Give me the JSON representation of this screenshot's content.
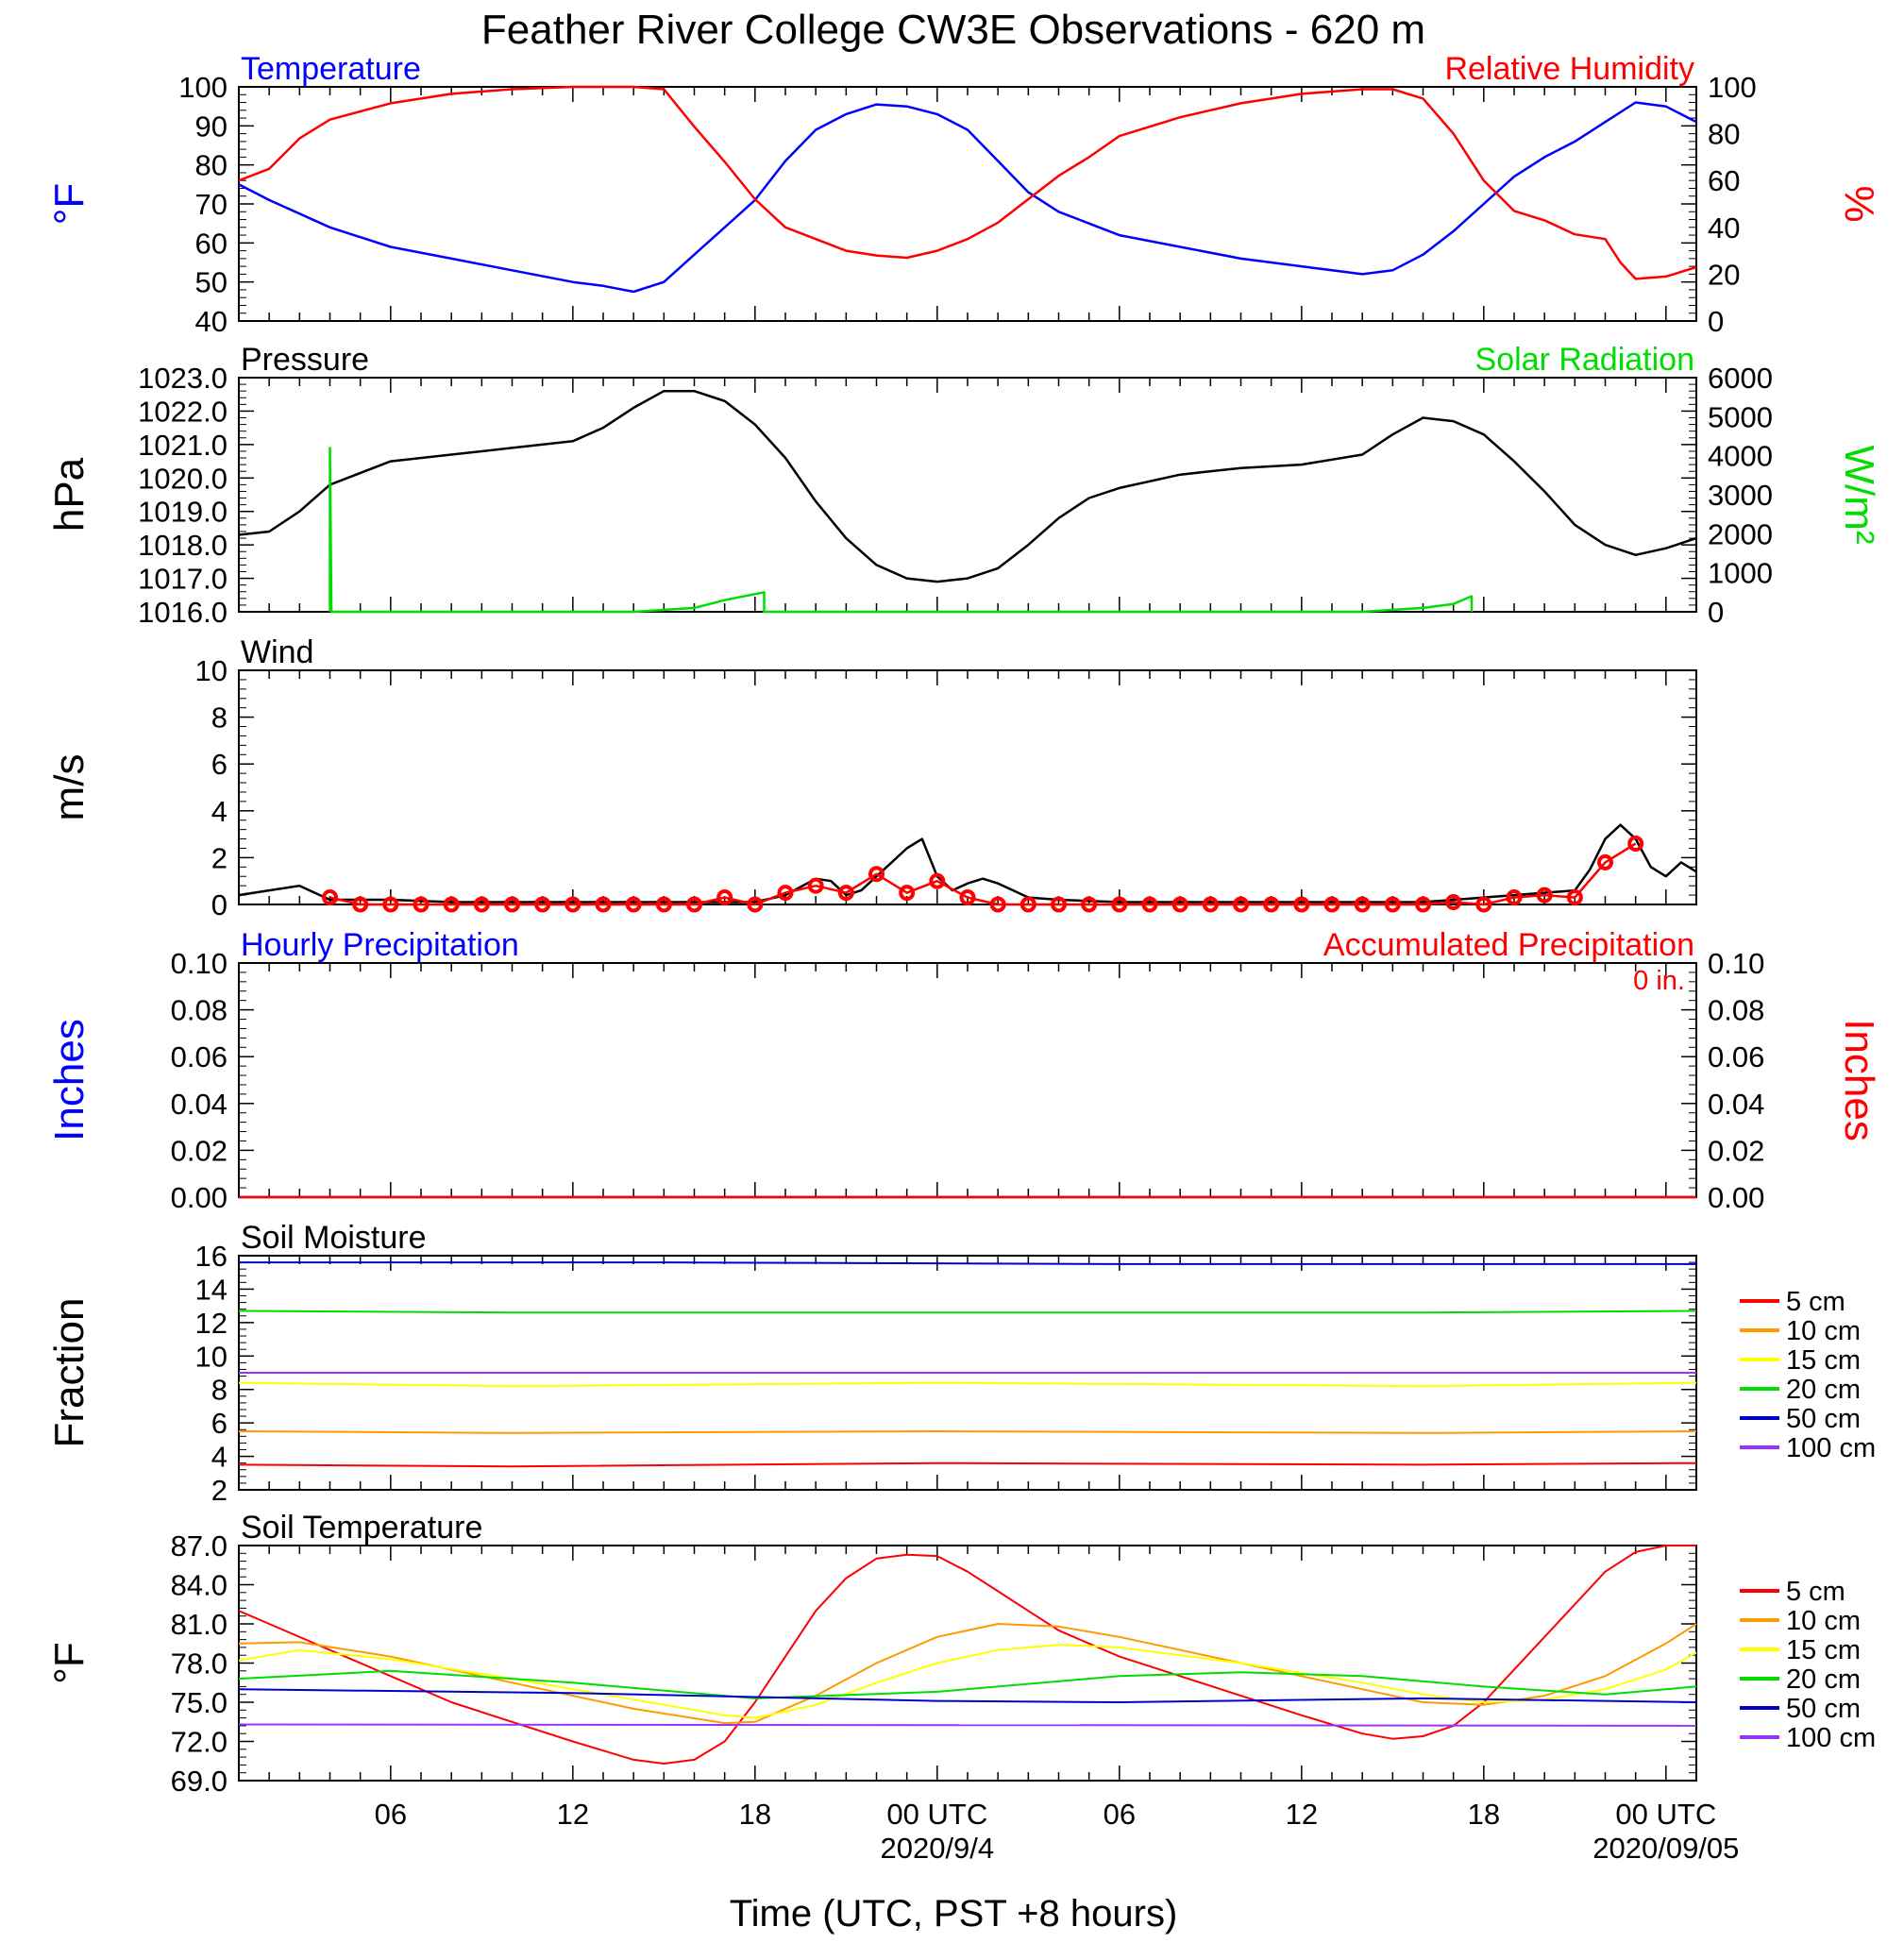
{
  "title": "Feather River College CW3E Observations - 620 m",
  "xlabel": "Time (UTC, PST +8 hours)",
  "x_ticks": [
    {
      "hour": 6,
      "label": "06"
    },
    {
      "hour": 12,
      "label": "12"
    },
    {
      "hour": 18,
      "label": "18"
    },
    {
      "hour": 24,
      "label": "00 UTC",
      "sub": "2020/9/4"
    },
    {
      "hour": 30,
      "label": "06"
    },
    {
      "hour": 36,
      "label": "12"
    },
    {
      "hour": 42,
      "label": "18"
    },
    {
      "hour": 48,
      "label": "00 UTC",
      "sub": "2020/09/05"
    }
  ],
  "colors": {
    "blue": "#0000ff",
    "red": "#ff0000",
    "green": "#00dd00",
    "black": "#000000",
    "orange": "#ff9900",
    "yellow": "#ffff00",
    "darkblue": "#0000cc",
    "purple": "#9933ff"
  },
  "chart_data": [
    {
      "id": "temp_rh",
      "type": "line",
      "left_title": "Temperature",
      "right_title": "Relative Humidity",
      "ylabel_left": "°F",
      "ylabel_right": "%",
      "ylim_left": [
        40,
        100
      ],
      "ylim_right": [
        0,
        100
      ],
      "yticks_left": [
        "40",
        "50",
        "60",
        "70",
        "80",
        "90",
        "100"
      ],
      "yticks_right": [
        "0",
        "20",
        "40",
        "60",
        "80",
        "100"
      ],
      "series": [
        {
          "name": "Temperature",
          "axis": "left",
          "color": "#0000ff",
          "x": [
            1,
            2,
            4,
            6,
            8,
            10,
            12,
            13,
            14,
            15,
            16,
            17,
            18,
            19,
            20,
            21,
            22,
            23,
            24,
            25,
            26,
            27,
            28,
            29,
            30,
            32,
            34,
            36,
            38,
            39,
            40,
            41,
            42,
            43,
            44,
            45,
            46,
            47,
            48,
            49
          ],
          "y": [
            75,
            71,
            64,
            59,
            56,
            53,
            50,
            49,
            47.5,
            50,
            57,
            64,
            71,
            81,
            89,
            93,
            95.5,
            95,
            93,
            89,
            81,
            73,
            68,
            65,
            62,
            59,
            56,
            54,
            52,
            53,
            57,
            63,
            70,
            77,
            82,
            86,
            91,
            96,
            95,
            91
          ]
        },
        {
          "name": "Relative Humidity",
          "axis": "right",
          "color": "#ff0000",
          "x": [
            1,
            2,
            3,
            4,
            6,
            8,
            10,
            12,
            13,
            14,
            15,
            16,
            17,
            18,
            19,
            20,
            21,
            22,
            23,
            24,
            25,
            26,
            27,
            28,
            29,
            30,
            32,
            34,
            36,
            38,
            39,
            40,
            41,
            42,
            43,
            44,
            45,
            46,
            46.5,
            47,
            48,
            49
          ],
          "y": [
            60,
            65,
            78,
            86,
            93,
            97,
            99,
            100,
            100,
            100,
            99,
            83,
            68,
            52,
            40,
            35,
            30,
            28,
            27,
            30,
            35,
            42,
            52,
            62,
            70,
            79,
            87,
            93,
            97,
            99,
            99,
            95,
            80,
            60,
            47,
            43,
            37,
            35,
            25,
            18,
            19,
            23
          ]
        }
      ]
    },
    {
      "id": "pres_solar",
      "type": "line",
      "left_title": "Pressure",
      "right_title": "Solar Radiation",
      "ylabel_left": "hPa",
      "ylabel_right": "W/m²",
      "ylim_left": [
        1016.0,
        1023.0
      ],
      "ylim_right": [
        0,
        6000
      ],
      "yticks_left": [
        "1016.0",
        "1017.0",
        "1018.0",
        "1019.0",
        "1020.0",
        "1021.0",
        "1022.0",
        "1023.0"
      ],
      "yticks_right": [
        "0",
        "1000",
        "2000",
        "3000",
        "4000",
        "5000",
        "6000"
      ],
      "series": [
        {
          "name": "Pressure",
          "axis": "left",
          "color": "#000000",
          "x": [
            1,
            2,
            3,
            4,
            6,
            8,
            10,
            12,
            13,
            14,
            15,
            16,
            17,
            18,
            19,
            20,
            21,
            22,
            23,
            24,
            25,
            26,
            27,
            28,
            29,
            30,
            32,
            34,
            36,
            38,
            39,
            40,
            41,
            42,
            43,
            44,
            45,
            46,
            47,
            48,
            49
          ],
          "y": [
            1018.3,
            1018.4,
            1019.0,
            1019.8,
            1020.5,
            1020.7,
            1020.9,
            1021.1,
            1021.5,
            1022.1,
            1022.6,
            1022.6,
            1022.3,
            1021.6,
            1020.6,
            1019.3,
            1018.2,
            1017.4,
            1017.0,
            1016.9,
            1017.0,
            1017.3,
            1018.0,
            1018.8,
            1019.4,
            1019.7,
            1020.1,
            1020.3,
            1020.4,
            1020.7,
            1021.3,
            1021.8,
            1021.7,
            1021.3,
            1020.5,
            1019.6,
            1018.6,
            1018.0,
            1017.7,
            1017.9,
            1018.2
          ]
        },
        {
          "name": "Solar Radiation",
          "axis": "right",
          "color": "#00dd00",
          "x": [
            4.0,
            4.0,
            4.05,
            14,
            16,
            17,
            18.3,
            18.3,
            29.7,
            38,
            40,
            41,
            41.6,
            41.6
          ],
          "y": [
            0,
            4200,
            0,
            0,
            100,
            300,
            500,
            0,
            0,
            0,
            100,
            200,
            400,
            0
          ]
        }
      ]
    },
    {
      "id": "wind",
      "type": "line",
      "left_title": "Wind",
      "ylabel_left": "m/s",
      "ylim_left": [
        0,
        10
      ],
      "yticks_left": [
        "0",
        "2",
        "4",
        "6",
        "8",
        "10"
      ],
      "series": [
        {
          "name": "Wind",
          "axis": "left",
          "color": "#000000",
          "x": [
            1,
            2,
            3,
            4,
            6,
            8,
            10,
            12,
            14,
            16,
            18,
            19,
            20,
            20.5,
            21,
            21.5,
            22,
            22.5,
            23,
            23.5,
            24,
            24.5,
            25,
            25.5,
            26,
            26.5,
            27,
            28,
            30,
            32,
            34,
            36,
            38,
            40,
            42,
            44,
            45,
            45.5,
            46,
            46.5,
            47,
            47.5,
            48,
            48.5,
            49
          ],
          "y": [
            0.4,
            0.6,
            0.8,
            0.2,
            0.2,
            0.1,
            0.1,
            0.1,
            0.1,
            0.1,
            0.1,
            0.4,
            1.1,
            1.0,
            0.4,
            0.6,
            1.2,
            1.8,
            2.4,
            2.8,
            1.2,
            0.6,
            0.9,
            1.1,
            0.9,
            0.6,
            0.3,
            0.2,
            0.1,
            0.1,
            0.1,
            0.1,
            0.1,
            0.1,
            0.3,
            0.5,
            0.6,
            1.5,
            2.8,
            3.4,
            2.8,
            1.6,
            1.2,
            1.8,
            1.4
          ]
        },
        {
          "name": "Wind hourly",
          "axis": "left",
          "color": "#ff0000",
          "x": [
            4,
            5,
            6,
            7,
            8,
            9,
            10,
            11,
            12,
            13,
            14,
            15,
            16,
            17,
            18,
            19,
            20,
            21,
            22,
            23,
            24,
            25,
            26,
            27,
            28,
            29,
            30,
            31,
            32,
            33,
            34,
            35,
            36,
            37,
            38,
            39,
            40,
            41,
            42,
            43,
            44,
            45,
            46,
            47
          ],
          "y": [
            0.3,
            0,
            0,
            0,
            0,
            0,
            0,
            0,
            0,
            0,
            0,
            0,
            0,
            0.3,
            0,
            0.5,
            0.8,
            0.5,
            1.3,
            0.5,
            1.0,
            0.3,
            0,
            0,
            0,
            0,
            0,
            0,
            0,
            0,
            0,
            0,
            0,
            0,
            0,
            0,
            0,
            0.1,
            0,
            0.3,
            0.4,
            0.3,
            1.8,
            2.6
          ]
        }
      ]
    },
    {
      "id": "precip",
      "type": "line",
      "left_title": "Hourly Precipitation",
      "right_title": "Accumulated Precipitation",
      "annotation": "0 in.",
      "ylabel_left": "Inches",
      "ylabel_right": "Inches",
      "ylim_left": [
        0.0,
        0.1
      ],
      "ylim_right": [
        0.0,
        0.1
      ],
      "yticks_left": [
        "0.00",
        "0.02",
        "0.04",
        "0.06",
        "0.08",
        "0.10"
      ],
      "yticks_right": [
        "0.00",
        "0.02",
        "0.04",
        "0.06",
        "0.08",
        "0.10"
      ],
      "series": [
        {
          "name": "Hourly Precipitation",
          "axis": "left",
          "color": "#0000ff",
          "x": [
            1,
            49
          ],
          "y": [
            0,
            0
          ]
        },
        {
          "name": "Accumulated Precipitation",
          "axis": "right",
          "color": "#ff0000",
          "x": [
            1,
            49
          ],
          "y": [
            0,
            0
          ]
        }
      ]
    },
    {
      "id": "soil_moist",
      "type": "line",
      "left_title": "Soil Moisture",
      "ylabel_left": "Fraction",
      "ylim_left": [
        2,
        16
      ],
      "yticks_left": [
        "2",
        "4",
        "6",
        "8",
        "10",
        "12",
        "14",
        "16"
      ],
      "legend": [
        "5 cm",
        "10 cm",
        "15 cm",
        "20 cm",
        "50 cm",
        "100 cm"
      ],
      "series": [
        {
          "name": "5 cm",
          "axis": "left",
          "color": "#ff0000",
          "x": [
            1,
            10,
            24,
            40,
            49
          ],
          "y": [
            3.5,
            3.4,
            3.6,
            3.5,
            3.6
          ]
        },
        {
          "name": "10 cm",
          "axis": "left",
          "color": "#ff9900",
          "x": [
            1,
            10,
            24,
            40,
            49
          ],
          "y": [
            5.5,
            5.4,
            5.5,
            5.4,
            5.5
          ]
        },
        {
          "name": "15 cm",
          "axis": "left",
          "color": "#ffff00",
          "x": [
            1,
            10,
            24,
            40,
            49
          ],
          "y": [
            8.4,
            8.2,
            8.4,
            8.2,
            8.4
          ]
        },
        {
          "name": "20 cm",
          "axis": "left",
          "color": "#00dd00",
          "x": [
            1,
            10,
            24,
            40,
            49
          ],
          "y": [
            12.7,
            12.6,
            12.6,
            12.6,
            12.7
          ]
        },
        {
          "name": "50 cm",
          "axis": "left",
          "color": "#0000cc",
          "x": [
            1,
            15,
            30,
            49
          ],
          "y": [
            15.6,
            15.6,
            15.5,
            15.5
          ]
        },
        {
          "name": "100 cm",
          "axis": "left",
          "color": "#9933ff",
          "x": [
            1,
            49
          ],
          "y": [
            9.0,
            9.0
          ]
        }
      ]
    },
    {
      "id": "soil_temp",
      "type": "line",
      "left_title": "Soil Temperature",
      "ylabel_left": "°F",
      "ylim_left": [
        69.0,
        87.0
      ],
      "yticks_left": [
        "69.0",
        "72.0",
        "75.0",
        "78.0",
        "81.0",
        "84.0",
        "87.0"
      ],
      "legend": [
        "5 cm",
        "10 cm",
        "15 cm",
        "20 cm",
        "50 cm",
        "100 cm"
      ],
      "series": [
        {
          "name": "5 cm",
          "axis": "left",
          "color": "#ff0000",
          "x": [
            1,
            2,
            4,
            6,
            8,
            10,
            12,
            14,
            15,
            16,
            17,
            18,
            19,
            20,
            21,
            22,
            23,
            24,
            25,
            26,
            27,
            28,
            29,
            30,
            32,
            34,
            36,
            38,
            39,
            40,
            41,
            42,
            43,
            44,
            45,
            46,
            47,
            48,
            49
          ],
          "y": [
            82.0,
            81.0,
            79.0,
            77.0,
            75.0,
            73.5,
            72.0,
            70.6,
            70.3,
            70.6,
            72.0,
            75.0,
            78.5,
            82.0,
            84.5,
            86.0,
            86.3,
            86.2,
            85.0,
            83.5,
            82.0,
            80.5,
            79.5,
            78.5,
            77.0,
            75.5,
            74.0,
            72.6,
            72.2,
            72.4,
            73.2,
            75.0,
            77.5,
            80.0,
            82.5,
            85.0,
            86.5,
            87.0,
            87.0
          ]
        },
        {
          "name": "10 cm",
          "axis": "left",
          "color": "#ff9900",
          "x": [
            1,
            3,
            6,
            10,
            14,
            17,
            18,
            20,
            22,
            24,
            26,
            28,
            30,
            34,
            38,
            40,
            42,
            44,
            46,
            48,
            49
          ],
          "y": [
            79.5,
            79.6,
            78.5,
            76.5,
            74.5,
            73.4,
            73.5,
            75.5,
            78.0,
            80.0,
            81.0,
            80.8,
            80.0,
            78.0,
            76.0,
            75.0,
            74.8,
            75.5,
            77.0,
            79.5,
            81.0
          ]
        },
        {
          "name": "15 cm",
          "axis": "left",
          "color": "#ffff00",
          "x": [
            1,
            3,
            6,
            10,
            14,
            17,
            18,
            20,
            22,
            24,
            26,
            28,
            30,
            34,
            38,
            40,
            42,
            44,
            46,
            48,
            49
          ],
          "y": [
            78.2,
            79.0,
            78.3,
            76.8,
            75.2,
            74.0,
            73.8,
            74.8,
            76.5,
            78.0,
            79.0,
            79.4,
            79.2,
            78.0,
            76.5,
            75.6,
            75.0,
            75.2,
            76.0,
            77.5,
            78.8
          ]
        },
        {
          "name": "20 cm",
          "axis": "left",
          "color": "#00dd00",
          "x": [
            1,
            6,
            12,
            18,
            24,
            30,
            34,
            38,
            42,
            46,
            49
          ],
          "y": [
            76.8,
            77.4,
            76.5,
            75.3,
            75.8,
            77.0,
            77.3,
            77.0,
            76.2,
            75.6,
            76.2
          ]
        },
        {
          "name": "50 cm",
          "axis": "left",
          "color": "#0000cc",
          "x": [
            1,
            12,
            24,
            30,
            40,
            49
          ],
          "y": [
            76.0,
            75.7,
            75.1,
            75.0,
            75.3,
            75.0
          ]
        },
        {
          "name": "100 cm",
          "axis": "left",
          "color": "#9933ff",
          "x": [
            1,
            49
          ],
          "y": [
            73.3,
            73.2
          ]
        }
      ]
    }
  ]
}
